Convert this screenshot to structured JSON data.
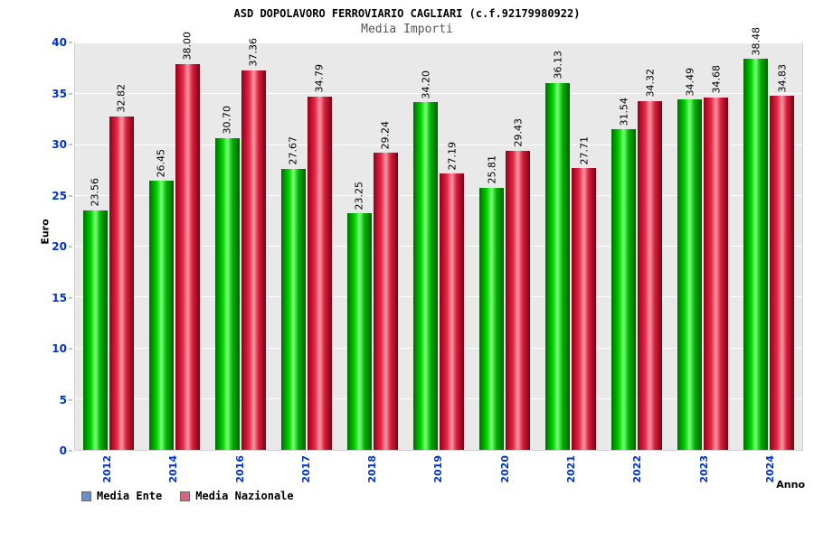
{
  "header": {
    "title": "ASD DOPOLAVORO FERROVIARIO CAGLIARI (c.f.92179980922)",
    "subtitle": "Media Importi"
  },
  "chart_data": {
    "type": "bar",
    "title": "Media Importi",
    "categories": [
      "2012",
      "2014",
      "2016",
      "2017",
      "2018",
      "2019",
      "2020",
      "2021",
      "2022",
      "2023",
      "2024"
    ],
    "series": [
      {
        "name": "Media Ente",
        "bar_color": "green",
        "values": [
          23.56,
          26.45,
          30.7,
          27.67,
          23.25,
          34.2,
          25.81,
          36.13,
          31.54,
          34.49,
          38.48
        ]
      },
      {
        "name": "Media Nazionale",
        "bar_color": "red",
        "values": [
          32.82,
          38.0,
          37.36,
          34.79,
          29.24,
          27.19,
          29.43,
          27.71,
          34.32,
          34.68,
          34.83
        ]
      }
    ],
    "xlabel": "Anno",
    "ylabel": "Euro",
    "ylim": [
      0,
      40
    ],
    "yticks": [
      0,
      5,
      10,
      15,
      20,
      25,
      30,
      35,
      40
    ],
    "grid": "horizontal-white-on-gray",
    "legend_position": "bottom-left",
    "value_label_format": "2-decimals, rotated 90"
  },
  "legend": {
    "items": [
      {
        "label": "Media Ente",
        "marker_color": "#6a8fd0"
      },
      {
        "label": "Media Nazionale",
        "marker_color": "#d4697e"
      }
    ]
  },
  "colors": {
    "axis_text": "#0033cc",
    "plot_background": "#e9e9e9",
    "gridline": "#ffffff",
    "bar_green": "#00cc00",
    "bar_red": "#d41f3c",
    "title_text": "#000000",
    "subtitle_text": "#555555"
  }
}
